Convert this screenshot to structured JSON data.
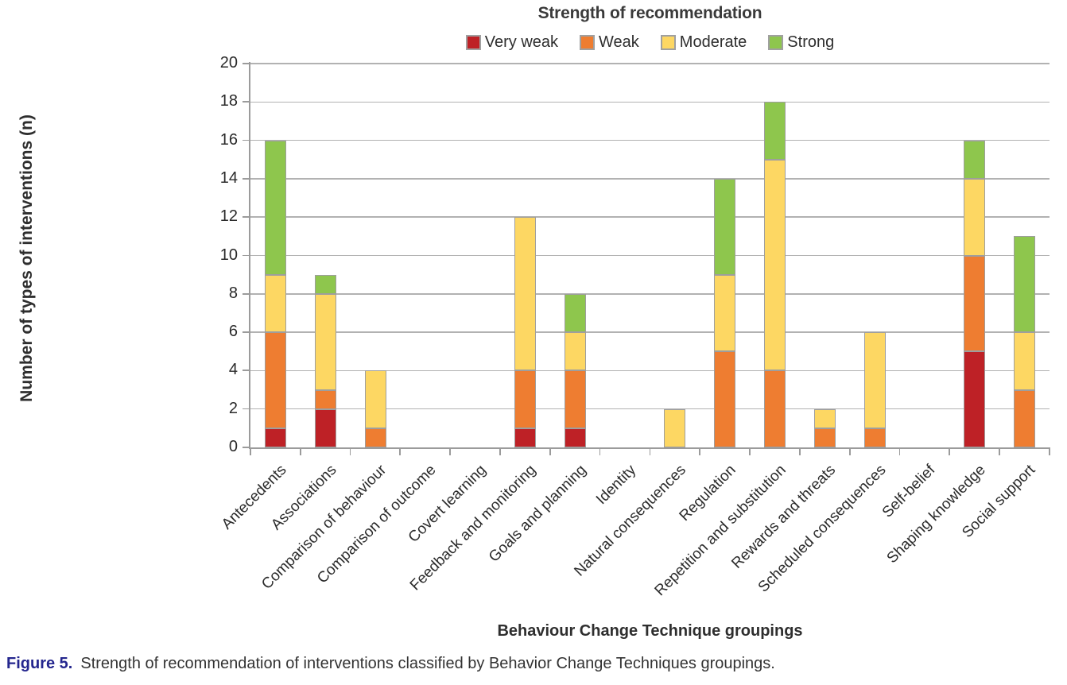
{
  "chart_data": {
    "type": "bar",
    "stacked": true,
    "title": "Strength of recommendation",
    "xlabel": "Behaviour Change Technique groupings",
    "ylabel": "Number of types of interventions (n)",
    "ylim": [
      0,
      20
    ],
    "ytick_step": 2,
    "yticks": [
      0,
      2,
      4,
      6,
      8,
      10,
      12,
      14,
      16,
      18,
      20
    ],
    "grid": true,
    "legend_position": "top",
    "categories": [
      "Antecedents",
      "Associations",
      "Comparison of behaviour",
      "Comparison of outcome",
      "Covert learning",
      "Feedback and monitoring",
      "Goals and planning",
      "Identity",
      "Natural consequences",
      "Regulation",
      "Repetition and substitution",
      "Rewards and threats",
      "Scheduled consequences",
      "Self-belief",
      "Shaping knowledge",
      "Social support"
    ],
    "series": [
      {
        "name": "Very weak",
        "color": "#be2126",
        "values": [
          1,
          2,
          0,
          0,
          0,
          1,
          1,
          0,
          0,
          0,
          0,
          0,
          0,
          0,
          5,
          0
        ]
      },
      {
        "name": "Weak",
        "color": "#ee7d31",
        "values": [
          5,
          1,
          1,
          0,
          0,
          3,
          3,
          0,
          0,
          5,
          4,
          1,
          1,
          0,
          5,
          3
        ]
      },
      {
        "name": "Moderate",
        "color": "#fdd763",
        "values": [
          3,
          5,
          3,
          0,
          0,
          8,
          2,
          0,
          2,
          4,
          11,
          1,
          5,
          0,
          4,
          3
        ]
      },
      {
        "name": "Strong",
        "color": "#8ec64d",
        "values": [
          7,
          1,
          0,
          0,
          0,
          0,
          2,
          0,
          0,
          5,
          3,
          0,
          0,
          0,
          2,
          5
        ]
      }
    ],
    "category_totals": [
      16,
      9,
      4,
      0,
      0,
      12,
      8,
      0,
      2,
      14,
      18,
      2,
      6,
      0,
      16,
      11
    ]
  },
  "caption": {
    "label": "Figure 5.",
    "text": "Strength of recommendation of interventions classified by Behavior Change Techniques groupings."
  },
  "colors": {
    "gridline": "#b2b2b2",
    "axis": "#9b9b9b",
    "segment_border": "#9e9e9e",
    "figure_label": "#24268e"
  }
}
